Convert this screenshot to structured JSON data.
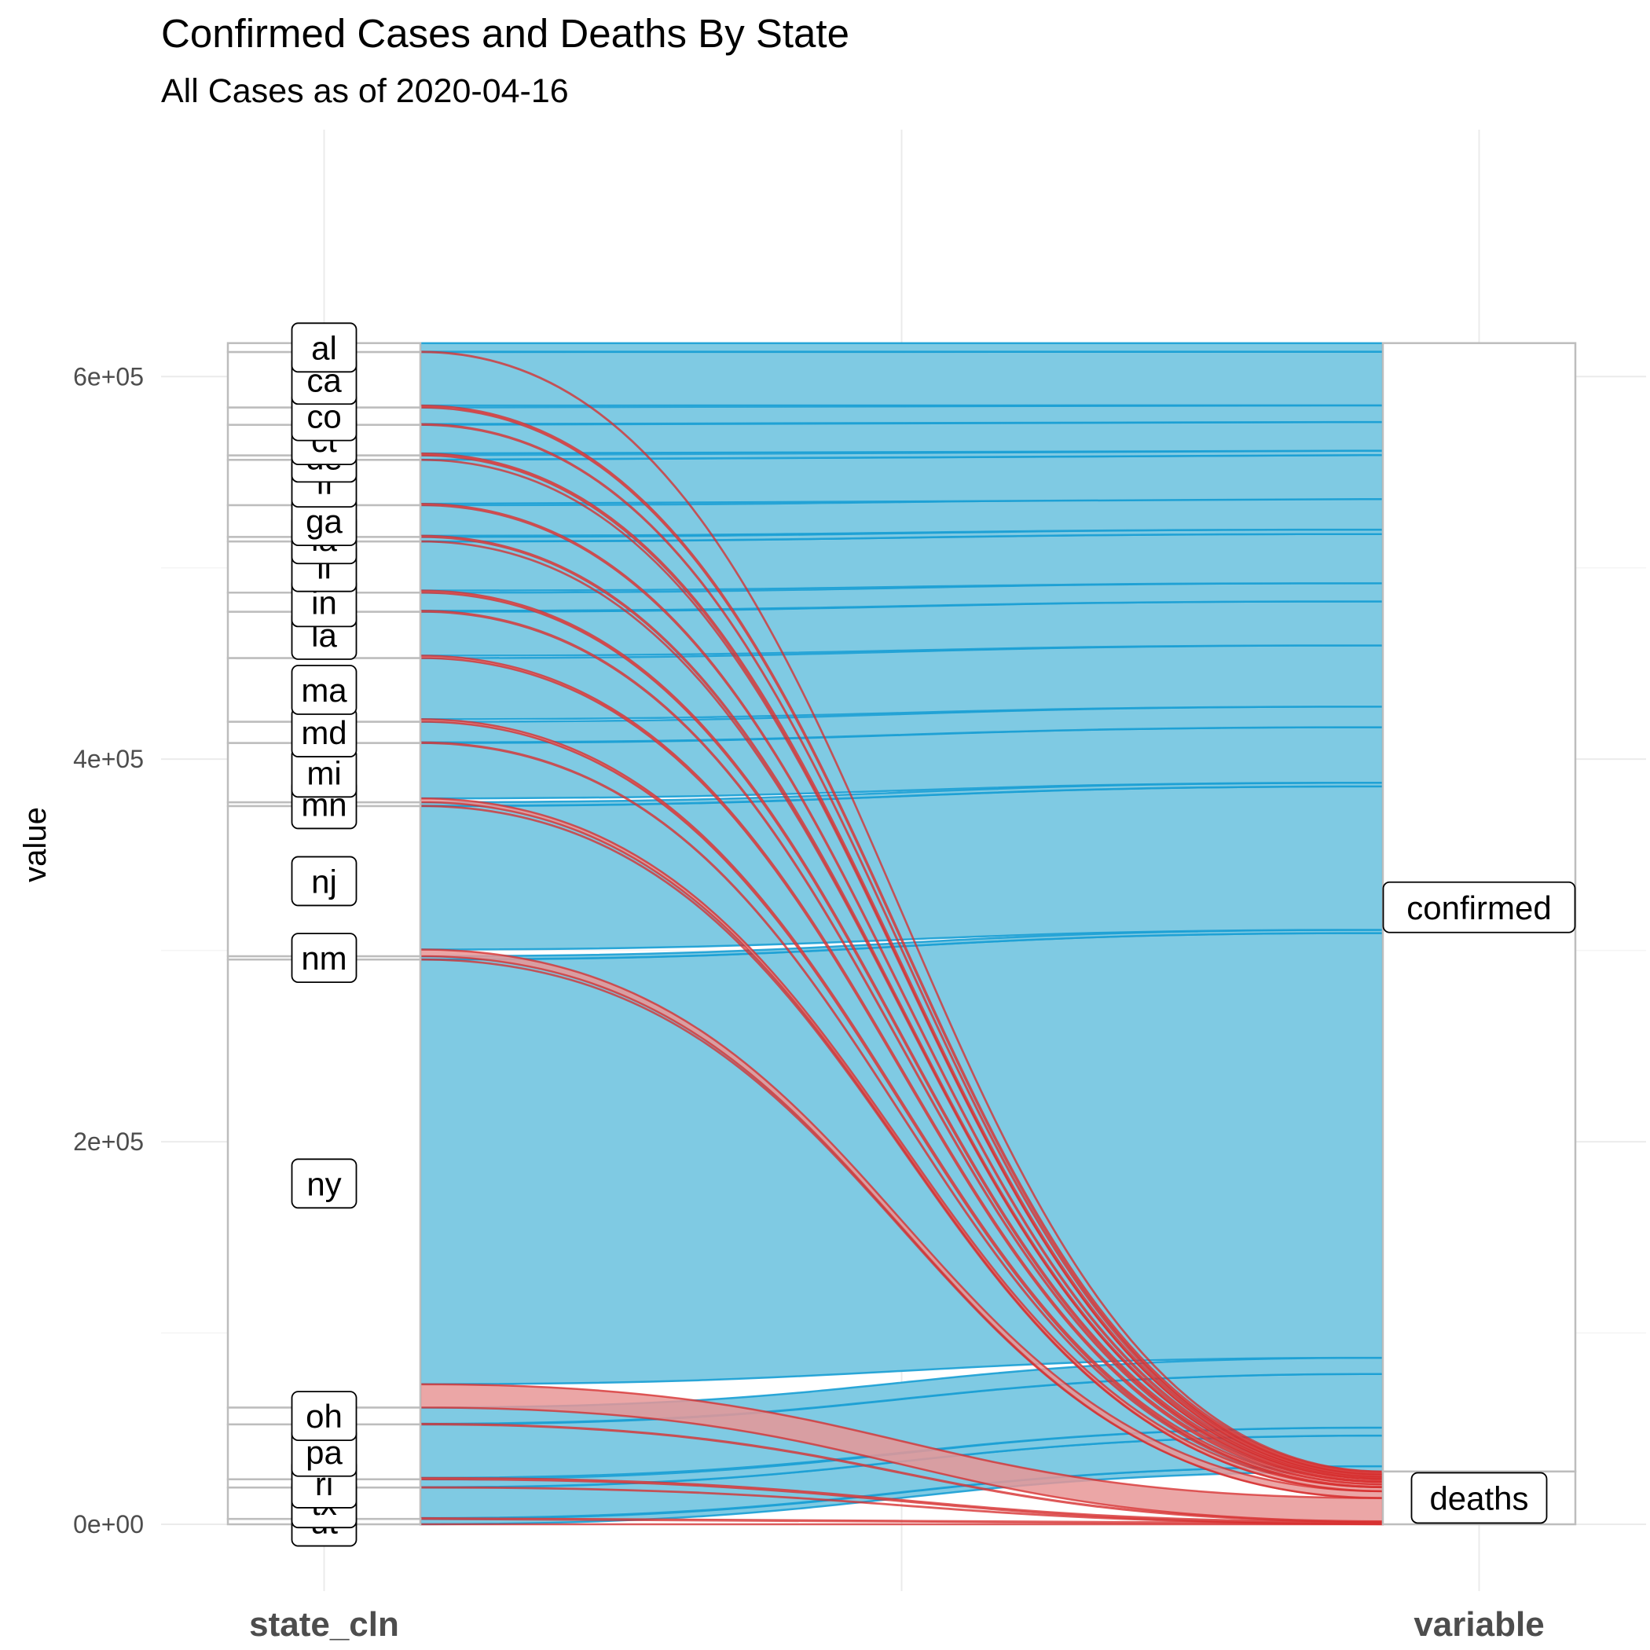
{
  "chart_data": {
    "type": "alluvial",
    "title": "Confirmed Cases and Deaths By State",
    "subtitle": "All Cases as of 2020-04-16",
    "ylabel": "value",
    "ylim": [
      0,
      695000
    ],
    "yticks": [
      0,
      200000,
      400000,
      600000
    ],
    "yticklabels": [
      "0e+00",
      "2e+05",
      "4e+05",
      "6e+05"
    ],
    "axes": [
      "state_cln",
      "variable"
    ],
    "colors": {
      "confirmed": "#1a9fd4",
      "deaths": "#d62b2b",
      "confirmed_fill": "#7fcae3",
      "deaths_fill": "#e89696"
    },
    "variable_strata": [
      {
        "name": "confirmed",
        "value": 662000
      },
      {
        "name": "deaths",
        "value": 33000
      }
    ],
    "states": [
      {
        "name": "ny",
        "confirmed": 222000,
        "deaths": 12200
      },
      {
        "name": "oh",
        "confirmed": 8500,
        "deaths": 300
      },
      {
        "name": "pa",
        "confirmed": 28000,
        "deaths": 700
      },
      {
        "name": "ri",
        "confirmed": 4200,
        "deaths": 120
      },
      {
        "name": "tx",
        "confirmed": 16000,
        "deaths": 400
      },
      {
        "name": "ut",
        "confirmed": 2800,
        "deaths": 20
      },
      {
        "name": "nm",
        "confirmed": 1700,
        "deaths": 40
      },
      {
        "name": "nj",
        "confirmed": 75000,
        "deaths": 3500
      },
      {
        "name": "mn",
        "confirmed": 1900,
        "deaths": 90
      },
      {
        "name": "mi",
        "confirmed": 29000,
        "deaths": 2000
      },
      {
        "name": "md",
        "confirmed": 10800,
        "deaths": 300
      },
      {
        "name": "ma",
        "confirmed": 32000,
        "deaths": 1300
      },
      {
        "name": "la",
        "confirmed": 23000,
        "deaths": 1200
      },
      {
        "name": "in",
        "confirmed": 9500,
        "deaths": 480
      },
      {
        "name": "il",
        "confirmed": 25700,
        "deaths": 1070
      },
      {
        "name": "ia",
        "confirmed": 2300,
        "deaths": 60
      },
      {
        "name": "ga",
        "confirmed": 16000,
        "deaths": 610
      },
      {
        "name": "fl",
        "confirmed": 23000,
        "deaths": 670
      },
      {
        "name": "de",
        "confirmed": 2300,
        "deaths": 60
      },
      {
        "name": "ct",
        "confirmed": 15000,
        "deaths": 970
      },
      {
        "name": "co",
        "confirmed": 8700,
        "deaths": 370
      },
      {
        "name": "ca",
        "confirmed": 28000,
        "deaths": 1000
      },
      {
        "name": "al",
        "confirmed": 4500,
        "deaths": 130
      }
    ]
  }
}
